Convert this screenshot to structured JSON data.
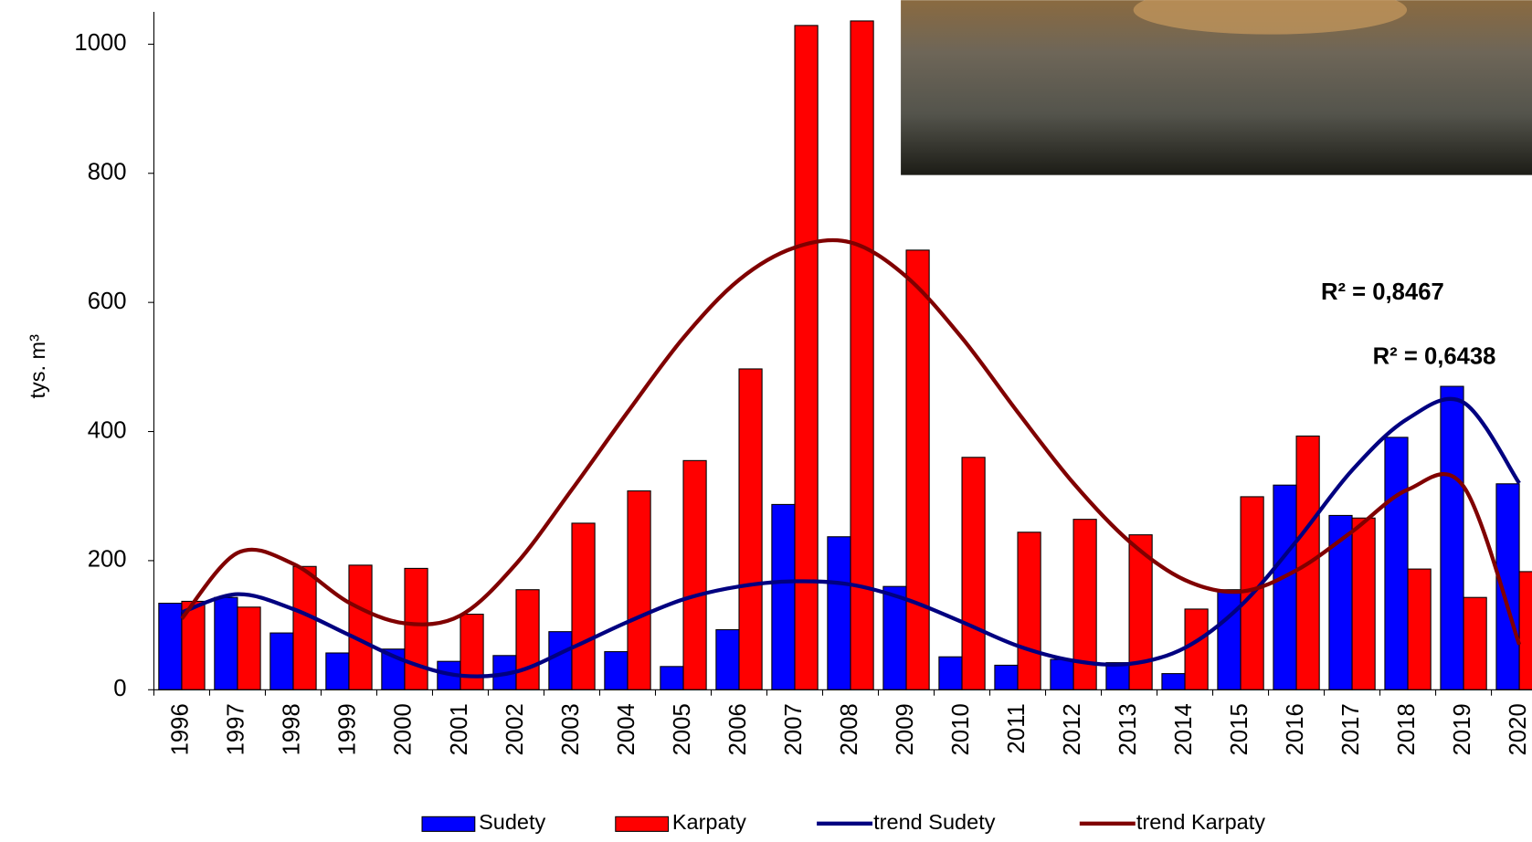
{
  "chart_data": {
    "type": "bar",
    "y_label": "tys. m³",
    "categories": [
      "1996",
      "1997",
      "1998",
      "1999",
      "2000",
      "2001",
      "2002",
      "2003",
      "2004",
      "2005",
      "2006",
      "2007",
      "2008",
      "2009",
      "2010",
      "2011",
      "2012",
      "2013",
      "2014",
      "2015",
      "2016",
      "2017",
      "2018",
      "2019",
      "2020"
    ],
    "series": [
      {
        "name": "Sudety",
        "type": "bar",
        "color": "#0000ff",
        "values": [
          134,
          143,
          88,
          57,
          63,
          44,
          53,
          90,
          59,
          36,
          93,
          287,
          237,
          160,
          51,
          38,
          47,
          42,
          25,
          155,
          317,
          270,
          391,
          470,
          319
        ]
      },
      {
        "name": "Karpaty",
        "type": "bar",
        "color": "#ff0000",
        "values": [
          137,
          128,
          191,
          193,
          188,
          117,
          155,
          258,
          308,
          355,
          497,
          1029,
          1036,
          681,
          360,
          244,
          264,
          240,
          125,
          299,
          393,
          266,
          187,
          143,
          183
        ]
      },
      {
        "name": "trend Sudety",
        "type": "line",
        "color": "#000080",
        "values": [
          120,
          148,
          125,
          85,
          45,
          22,
          28,
          65,
          105,
          140,
          160,
          168,
          163,
          140,
          105,
          68,
          45,
          40,
          65,
          130,
          230,
          340,
          420,
          445,
          320
        ]
      },
      {
        "name": "trend Karpaty",
        "type": "line",
        "color": "#800000",
        "values": [
          110,
          212,
          195,
          135,
          103,
          115,
          195,
          310,
          430,
          545,
          635,
          685,
          693,
          640,
          545,
          430,
          320,
          230,
          170,
          152,
          185,
          245,
          310,
          315,
          70
        ]
      }
    ],
    "annotations": [
      {
        "text": "R² = 0,8467",
        "color": "#0000ff"
      },
      {
        "text": "R² = 0,6438",
        "color": "#993300"
      }
    ],
    "ylim": [
      0,
      1050
    ],
    "yticks": [
      0,
      200,
      400,
      600,
      800,
      1000
    ]
  }
}
